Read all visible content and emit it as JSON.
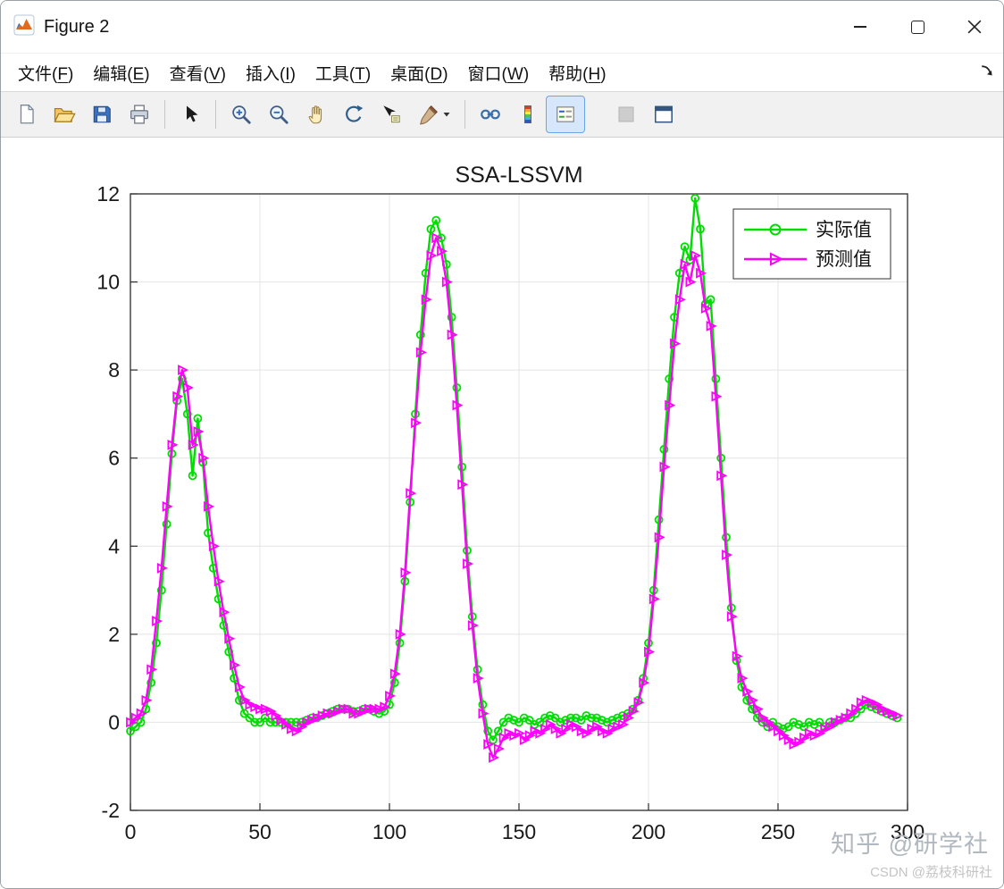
{
  "window": {
    "title": "Figure 2",
    "controls": [
      {
        "name": "minimize"
      },
      {
        "name": "maximize"
      },
      {
        "name": "close"
      }
    ]
  },
  "menu_bar": {
    "items": [
      {
        "pre": "文件(",
        "key": "F",
        "post": ")"
      },
      {
        "pre": "编辑(",
        "key": "E",
        "post": ")"
      },
      {
        "pre": "查看(",
        "key": "V",
        "post": ")"
      },
      {
        "pre": "插入(",
        "key": "I",
        "post": ")"
      },
      {
        "pre": "工具(",
        "key": "T",
        "post": ")"
      },
      {
        "pre": "桌面(",
        "key": "D",
        "post": ")"
      },
      {
        "pre": "窗口(",
        "key": "W",
        "post": ")"
      },
      {
        "pre": "帮助(",
        "key": "H",
        "post": ")"
      }
    ]
  },
  "toolbar": {
    "buttons": [
      "new-figure",
      "open-file",
      "save-figure",
      "print-figure",
      "edit-plot",
      "zoom-in",
      "zoom-out",
      "pan",
      "rotate-3d",
      "data-cursor",
      "brush-data",
      "link-plot",
      "insert-colorbar",
      "insert-legend",
      "hide-plot-tools",
      "dock-figure"
    ],
    "active_button": "insert-legend",
    "disabled_buttons": [
      "hide-plot-tools"
    ]
  },
  "chart_data": {
    "type": "line",
    "title": "SSA-LSSVM",
    "xlim": [
      0,
      300
    ],
    "ylim": [
      -2,
      12
    ],
    "xticks": [
      0,
      50,
      100,
      150,
      200,
      250,
      300
    ],
    "yticks": [
      -2,
      0,
      2,
      4,
      6,
      8,
      10,
      12
    ],
    "grid": true,
    "legend_position": "top-right",
    "x_start": 0,
    "x_step": 2,
    "series": [
      {
        "name": "实际值",
        "color": "#00dd00",
        "marker": "circle",
        "values": [
          -0.2,
          -0.1,
          0,
          0.3,
          0.9,
          1.8,
          3,
          4.5,
          6.1,
          7.3,
          7.8,
          7,
          5.6,
          6.9,
          5.9,
          4.3,
          3.5,
          2.8,
          2.2,
          1.6,
          1,
          0.5,
          0.2,
          0.1,
          0,
          0,
          0.1,
          0,
          0,
          0,
          0,
          0,
          0,
          0,
          0.05,
          0.1,
          0.1,
          0.15,
          0.2,
          0.25,
          0.3,
          0.3,
          0.3,
          0.25,
          0.25,
          0.3,
          0.3,
          0.25,
          0.2,
          0.25,
          0.4,
          0.9,
          1.8,
          3.2,
          5,
          7,
          8.8,
          10.2,
          11.2,
          11.4,
          11,
          10.4,
          9.2,
          7.6,
          5.8,
          3.9,
          2.4,
          1.2,
          0.4,
          -0.2,
          -0.4,
          -0.2,
          0,
          0.1,
          0.05,
          0,
          0.1,
          0.05,
          -0.05,
          0,
          0.1,
          0.15,
          0.1,
          0,
          0.05,
          0.1,
          0.1,
          0.05,
          0.15,
          0.1,
          0.1,
          0.05,
          0,
          0.05,
          0.1,
          0.15,
          0.2,
          0.3,
          0.5,
          1,
          1.8,
          3,
          4.6,
          6.2,
          7.8,
          9.2,
          10.2,
          10.8,
          10.5,
          11.9,
          11.2,
          9.5,
          9.6,
          7.8,
          6,
          4.2,
          2.6,
          1.4,
          0.8,
          0.5,
          0.3,
          0.1,
          0,
          -0.1,
          0,
          -0.1,
          -0.15,
          -0.1,
          0,
          -0.05,
          -0.1,
          0,
          -0.05,
          0,
          -0.1,
          0,
          0,
          0.05,
          0.1,
          0.1,
          0.2,
          0.3,
          0.4,
          0.35,
          0.3,
          0.25,
          0.2,
          0.15,
          0.1
        ]
      },
      {
        "name": "预测值",
        "color": "#ff00ff",
        "marker": "triangle-right",
        "values": [
          0,
          0.1,
          0.2,
          0.5,
          1.2,
          2.3,
          3.5,
          4.9,
          6.3,
          7.4,
          8,
          7.6,
          6.3,
          6.6,
          6,
          4.9,
          4,
          3.2,
          2.5,
          1.9,
          1.3,
          0.8,
          0.5,
          0.4,
          0.35,
          0.3,
          0.3,
          0.25,
          0.15,
          0.05,
          -0.05,
          -0.15,
          -0.2,
          -0.1,
          0,
          0.05,
          0.1,
          0.15,
          0.2,
          0.2,
          0.25,
          0.3,
          0.3,
          0.2,
          0.2,
          0.25,
          0.3,
          0.3,
          0.3,
          0.35,
          0.6,
          1.1,
          2,
          3.4,
          5.2,
          6.8,
          8.4,
          9.6,
          10.6,
          11,
          10.7,
          10,
          8.8,
          7.2,
          5.4,
          3.6,
          2.2,
          1,
          0.2,
          -0.5,
          -0.8,
          -0.6,
          -0.35,
          -0.25,
          -0.3,
          -0.25,
          -0.4,
          -0.3,
          -0.2,
          -0.25,
          -0.15,
          -0.05,
          -0.15,
          -0.25,
          -0.15,
          -0.05,
          -0.1,
          -0.2,
          -0.25,
          -0.15,
          -0.1,
          -0.2,
          -0.25,
          -0.15,
          -0.1,
          -0.05,
          0.1,
          0.25,
          0.45,
          0.9,
          1.6,
          2.8,
          4.2,
          5.8,
          7.2,
          8.6,
          9.6,
          10.4,
          10,
          10.6,
          10.2,
          9.4,
          9,
          7.4,
          5.6,
          3.8,
          2.4,
          1.5,
          1,
          0.7,
          0.5,
          0.3,
          0.1,
          0,
          -0.1,
          -0.2,
          -0.3,
          -0.4,
          -0.5,
          -0.45,
          -0.35,
          -0.25,
          -0.3,
          -0.25,
          -0.15,
          -0.1,
          0,
          0.05,
          0.1,
          0.2,
          0.3,
          0.45,
          0.5,
          0.45,
          0.4,
          0.3,
          0.25,
          0.2,
          0.15
        ]
      }
    ]
  },
  "watermark": {
    "zhihu": "知乎 @研学社",
    "csdn": "CSDN @荔枝科研社"
  }
}
